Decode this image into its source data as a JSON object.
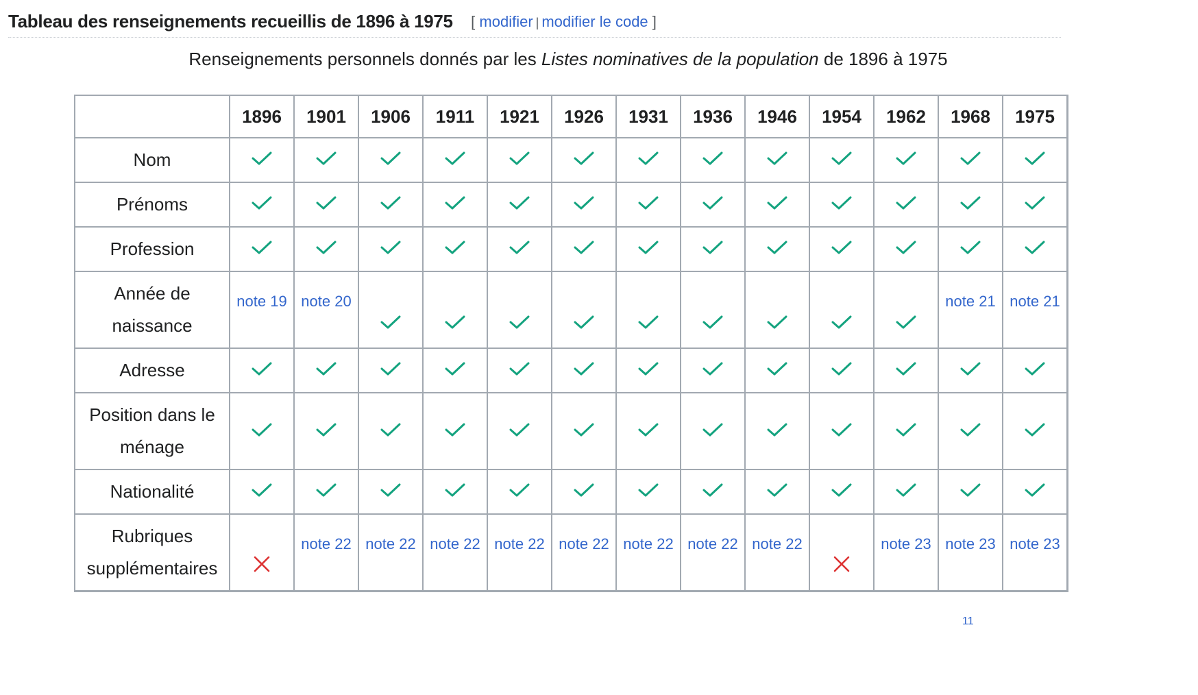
{
  "heading": {
    "title": "Tableau des renseignements recueillis de 1896 à 1975",
    "edit_open": "[",
    "edit_label": "modifier",
    "separator": "|",
    "edit_code_label": "modifier le code",
    "edit_close": "]"
  },
  "caption": {
    "prefix": "Renseignements personnels donnés par les ",
    "italic": "Listes nominatives de la population",
    "suffix": " de 1896 à 1975"
  },
  "table": {
    "years": [
      "1896",
      "1901",
      "1906",
      "1911",
      "1921",
      "1926",
      "1931",
      "1936",
      "1946",
      "1954",
      "1962",
      "1968",
      "1975"
    ],
    "rows": [
      {
        "label": "Nom",
        "cells": [
          "check",
          "check",
          "check",
          "check",
          "check",
          "check",
          "check",
          "check",
          "check",
          "check",
          "check",
          "check",
          "check"
        ]
      },
      {
        "label": "Prénoms",
        "cells": [
          "check",
          "check",
          "check",
          "check",
          "check",
          "check",
          "check",
          "check",
          "check",
          "check",
          "check",
          "check",
          "check"
        ]
      },
      {
        "label": "Profession",
        "cells": [
          "check",
          "check",
          "check",
          "check",
          "check",
          "check",
          "check",
          "check",
          "check",
          "check",
          "check",
          "check",
          "check"
        ]
      },
      {
        "label": "Année de naissance",
        "cells": [
          "note 19",
          "note 20",
          "check",
          "check",
          "check",
          "check",
          "check",
          "check",
          "check",
          "check",
          "check",
          "note 21",
          "note 21"
        ]
      },
      {
        "label": "Adresse",
        "cells": [
          "check",
          "check",
          "check",
          "check",
          "check",
          "check",
          "check",
          "check",
          "check",
          "check",
          "check",
          "check",
          "check"
        ]
      },
      {
        "label": "Position dans le ménage",
        "cells": [
          "check",
          "check",
          "check",
          "check",
          "check",
          "check",
          "check",
          "check",
          "check",
          "check",
          "check",
          "check",
          "check"
        ]
      },
      {
        "label": "Nationalité",
        "cells": [
          "check",
          "check",
          "check",
          "check",
          "check",
          "check",
          "check",
          "check",
          "check",
          "check",
          "check",
          "check",
          "check"
        ]
      },
      {
        "label": "Rubriques supplémentaires",
        "cells": [
          "cross",
          "note 22",
          "note 22",
          "note 22",
          "note 22",
          "note 22",
          "note 22",
          "note 22",
          "note 22",
          "cross",
          "note 23",
          "note 23",
          "note 23"
        ]
      }
    ]
  },
  "icons": {
    "check": "check-icon",
    "cross": "cross-icon"
  },
  "colors": {
    "check": "#14a37f",
    "cross": "#dd3333",
    "link": "#3366cc",
    "border": "#a2a9b1"
  },
  "footer_partial": "11"
}
